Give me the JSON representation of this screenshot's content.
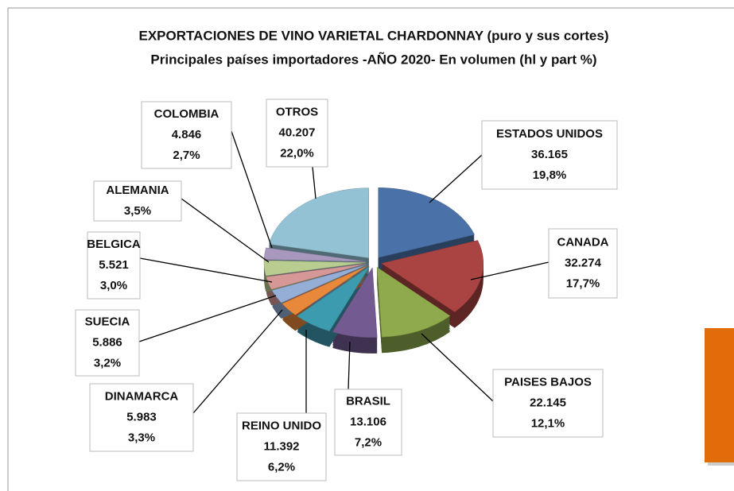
{
  "chart_data": {
    "type": "pie",
    "title": "EXPORTACIONES DE VINO VARIETAL CHARDONNAY (puro y sus cortes)",
    "subtitle": "Principales países importadores -AÑO 2020- En volumen (hl y part  %)",
    "categories": [
      "ESTADOS UNIDOS",
      "CANADA",
      "PAISES BAJOS",
      "BRASIL",
      "REINO UNIDO",
      "DINAMARCA",
      "SUECIA",
      "BELGICA",
      "ALEMANIA",
      "COLOMBIA",
      "OTROS"
    ],
    "values": [
      19.8,
      17.7,
      12.1,
      7.2,
      6.2,
      3.3,
      3.2,
      3.0,
      3.5,
      2.7,
      22.0
    ],
    "value_labels": [
      "19,8%",
      "17,7%",
      "12,1%",
      "7,2%",
      "6,2%",
      "3,3%",
      "3,2%",
      "3,0%",
      "3,5%",
      "2,7%",
      "22,0%"
    ],
    "volumes": [
      36165,
      32274,
      22145,
      13106,
      11392,
      5983,
      5886,
      5521,
      null,
      4846,
      40207
    ],
    "volume_labels": [
      "36.165",
      "32.274",
      "22.145",
      "13.106",
      "11.392",
      "5.983",
      "5.886",
      "5.521",
      null,
      "4.846",
      "40.207"
    ],
    "colors": [
      "#4a72a8",
      "#a94442",
      "#8eaa4c",
      "#735a91",
      "#3d9bb0",
      "#e8883a",
      "#95aed6",
      "#d59896",
      "#b9cd90",
      "#a898be",
      "#93c2d4"
    ]
  }
}
